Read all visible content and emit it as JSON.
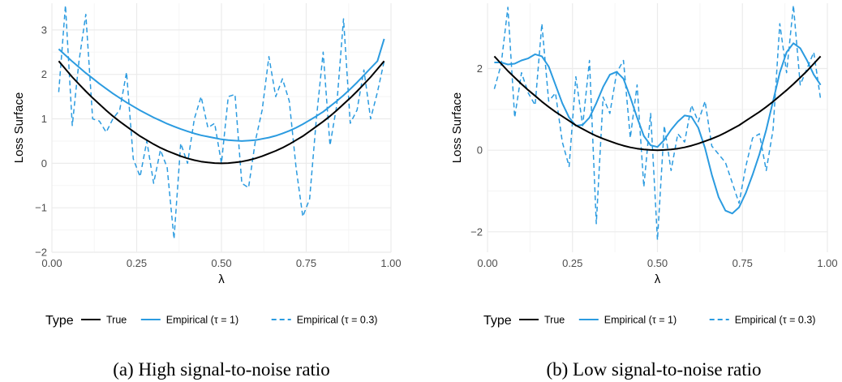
{
  "colors": {
    "true": "#000000",
    "empirical": "#2b9be0",
    "grid_major": "#ebebeb",
    "grid_minor": "#f5f5f5"
  },
  "legend": {
    "title": "Type",
    "items": [
      {
        "label": "True",
        "color": "#000000",
        "dash": "solid"
      },
      {
        "label": "Empirical (τ = 1)",
        "color": "#2b9be0",
        "dash": "solid"
      },
      {
        "label": "Empirical (τ = 0.3)",
        "color": "#2b9be0",
        "dash": "dashed"
      }
    ]
  },
  "chart_data": [
    {
      "type": "line",
      "caption": "(a) High signal-to-noise ratio",
      "xlabel": "λ",
      "ylabel": "Loss Surface",
      "xlim": [
        0,
        1
      ],
      "ylim": [
        -2,
        3.6
      ],
      "x_ticks": [
        0,
        0.25,
        0.5,
        0.75,
        1
      ],
      "x_tick_labels": [
        "0.00",
        "0.25",
        "0.50",
        "0.75",
        "1.00"
      ],
      "y_ticks": [
        -2,
        -1,
        0,
        1,
        2,
        3
      ],
      "y_tick_labels": [
        "−2",
        "−1",
        "0",
        "1",
        "2",
        "3"
      ],
      "x": [
        0.02,
        0.04,
        0.06,
        0.08,
        0.1,
        0.12,
        0.14,
        0.16,
        0.18,
        0.2,
        0.22,
        0.24,
        0.26,
        0.28,
        0.3,
        0.32,
        0.34,
        0.36,
        0.38,
        0.4,
        0.42,
        0.44,
        0.46,
        0.48,
        0.5,
        0.52,
        0.54,
        0.56,
        0.58,
        0.6,
        0.62,
        0.64,
        0.66,
        0.68,
        0.7,
        0.72,
        0.74,
        0.76,
        0.78,
        0.8,
        0.82,
        0.84,
        0.86,
        0.88,
        0.9,
        0.92,
        0.94,
        0.96,
        0.98
      ],
      "series": [
        {
          "name": "True",
          "style": "solid",
          "color": "#000000",
          "values": [
            2.3,
            2.12,
            1.94,
            1.78,
            1.62,
            1.47,
            1.33,
            1.19,
            1.06,
            0.94,
            0.83,
            0.72,
            0.61,
            0.52,
            0.43,
            0.35,
            0.28,
            0.22,
            0.16,
            0.11,
            0.07,
            0.04,
            0.02,
            0.005,
            0.0,
            0.005,
            0.02,
            0.04,
            0.07,
            0.11,
            0.16,
            0.22,
            0.28,
            0.35,
            0.43,
            0.52,
            0.61,
            0.72,
            0.83,
            0.94,
            1.06,
            1.19,
            1.33,
            1.47,
            1.62,
            1.78,
            1.94,
            2.12,
            2.3
          ]
        },
        {
          "name": "Empirical (τ = 1)",
          "style": "solid",
          "color": "#2b9be0",
          "values": [
            2.57,
            2.43,
            2.29,
            2.16,
            2.03,
            1.91,
            1.79,
            1.68,
            1.57,
            1.47,
            1.37,
            1.28,
            1.19,
            1.11,
            1.03,
            0.96,
            0.89,
            0.83,
            0.77,
            0.72,
            0.67,
            0.63,
            0.6,
            0.57,
            0.54,
            0.52,
            0.51,
            0.5,
            0.51,
            0.52,
            0.55,
            0.58,
            0.62,
            0.67,
            0.73,
            0.8,
            0.88,
            0.97,
            1.06,
            1.16,
            1.28,
            1.4,
            1.53,
            1.67,
            1.82,
            1.98,
            2.14,
            2.3,
            2.8
          ]
        },
        {
          "name": "Empirical (τ = 0.3)",
          "style": "dashed",
          "color": "#2b9be0",
          "values": [
            1.6,
            3.55,
            0.85,
            2.3,
            3.35,
            1.0,
            0.95,
            0.7,
            1.0,
            1.2,
            2.05,
            0.1,
            -0.3,
            0.5,
            -0.45,
            0.3,
            -0.1,
            -1.7,
            0.45,
            0.0,
            1.0,
            1.5,
            0.8,
            0.9,
            0.0,
            1.5,
            1.55,
            -0.45,
            -0.55,
            0.5,
            1.2,
            2.4,
            1.5,
            1.9,
            1.4,
            -0.1,
            -1.2,
            -0.8,
            1.0,
            2.5,
            0.4,
            1.3,
            3.25,
            0.9,
            1.2,
            2.1,
            1.0,
            1.6,
            2.3
          ]
        }
      ]
    },
    {
      "type": "line",
      "caption": "(b) Low signal-to-noise ratio",
      "xlabel": "λ",
      "ylabel": "Loss Surface",
      "xlim": [
        0,
        1
      ],
      "ylim": [
        -2.5,
        3.6
      ],
      "x_ticks": [
        0,
        0.25,
        0.5,
        0.75,
        1
      ],
      "x_tick_labels": [
        "0.00",
        "0.25",
        "0.50",
        "0.75",
        "1.00"
      ],
      "y_ticks": [
        -2,
        0,
        2
      ],
      "y_tick_labels": [
        "−2",
        "0",
        "2"
      ],
      "x": [
        0.02,
        0.04,
        0.06,
        0.08,
        0.1,
        0.12,
        0.14,
        0.16,
        0.18,
        0.2,
        0.22,
        0.24,
        0.26,
        0.28,
        0.3,
        0.32,
        0.34,
        0.36,
        0.38,
        0.4,
        0.42,
        0.44,
        0.46,
        0.48,
        0.5,
        0.52,
        0.54,
        0.56,
        0.58,
        0.6,
        0.62,
        0.64,
        0.66,
        0.68,
        0.7,
        0.72,
        0.74,
        0.76,
        0.78,
        0.8,
        0.82,
        0.84,
        0.86,
        0.88,
        0.9,
        0.92,
        0.94,
        0.96,
        0.98
      ],
      "series": [
        {
          "name": "True",
          "style": "solid",
          "color": "#000000",
          "values": [
            2.3,
            2.12,
            1.94,
            1.78,
            1.62,
            1.47,
            1.33,
            1.19,
            1.06,
            0.94,
            0.83,
            0.72,
            0.61,
            0.52,
            0.43,
            0.35,
            0.28,
            0.22,
            0.16,
            0.11,
            0.07,
            0.04,
            0.02,
            0.005,
            0.0,
            0.005,
            0.02,
            0.04,
            0.07,
            0.11,
            0.16,
            0.22,
            0.28,
            0.35,
            0.43,
            0.52,
            0.61,
            0.72,
            0.83,
            0.94,
            1.06,
            1.19,
            1.33,
            1.47,
            1.62,
            1.78,
            1.94,
            2.12,
            2.3
          ]
        },
        {
          "name": "Empirical (τ = 1)",
          "style": "solid",
          "color": "#2b9be0",
          "values": [
            2.15,
            2.15,
            2.1,
            2.12,
            2.2,
            2.25,
            2.35,
            2.3,
            2.05,
            1.6,
            1.15,
            0.8,
            0.6,
            0.62,
            0.8,
            1.15,
            1.55,
            1.85,
            1.92,
            1.75,
            1.3,
            0.8,
            0.35,
            0.12,
            0.08,
            0.25,
            0.5,
            0.7,
            0.85,
            0.82,
            0.55,
            0.05,
            -0.6,
            -1.15,
            -1.48,
            -1.55,
            -1.4,
            -1.05,
            -0.6,
            -0.1,
            0.5,
            1.2,
            1.9,
            2.4,
            2.62,
            2.5,
            2.2,
            1.85,
            1.6
          ]
        },
        {
          "name": "Empirical (τ = 0.3)",
          "style": "dashed",
          "color": "#2b9be0",
          "values": [
            1.5,
            2.1,
            3.5,
            0.8,
            1.9,
            1.4,
            1.1,
            3.1,
            1.2,
            1.4,
            0.2,
            -0.4,
            1.8,
            0.6,
            2.2,
            -1.8,
            1.3,
            0.9,
            1.9,
            2.2,
            0.3,
            1.6,
            -0.9,
            0.9,
            -2.2,
            0.6,
            -0.5,
            0.4,
            0.2,
            1.1,
            0.7,
            1.2,
            0.1,
            -0.1,
            -0.3,
            -0.8,
            -1.3,
            -0.4,
            0.3,
            0.4,
            -0.5,
            0.5,
            3.1,
            1.9,
            3.55,
            1.6,
            2.0,
            2.4,
            1.25
          ]
        }
      ]
    }
  ]
}
